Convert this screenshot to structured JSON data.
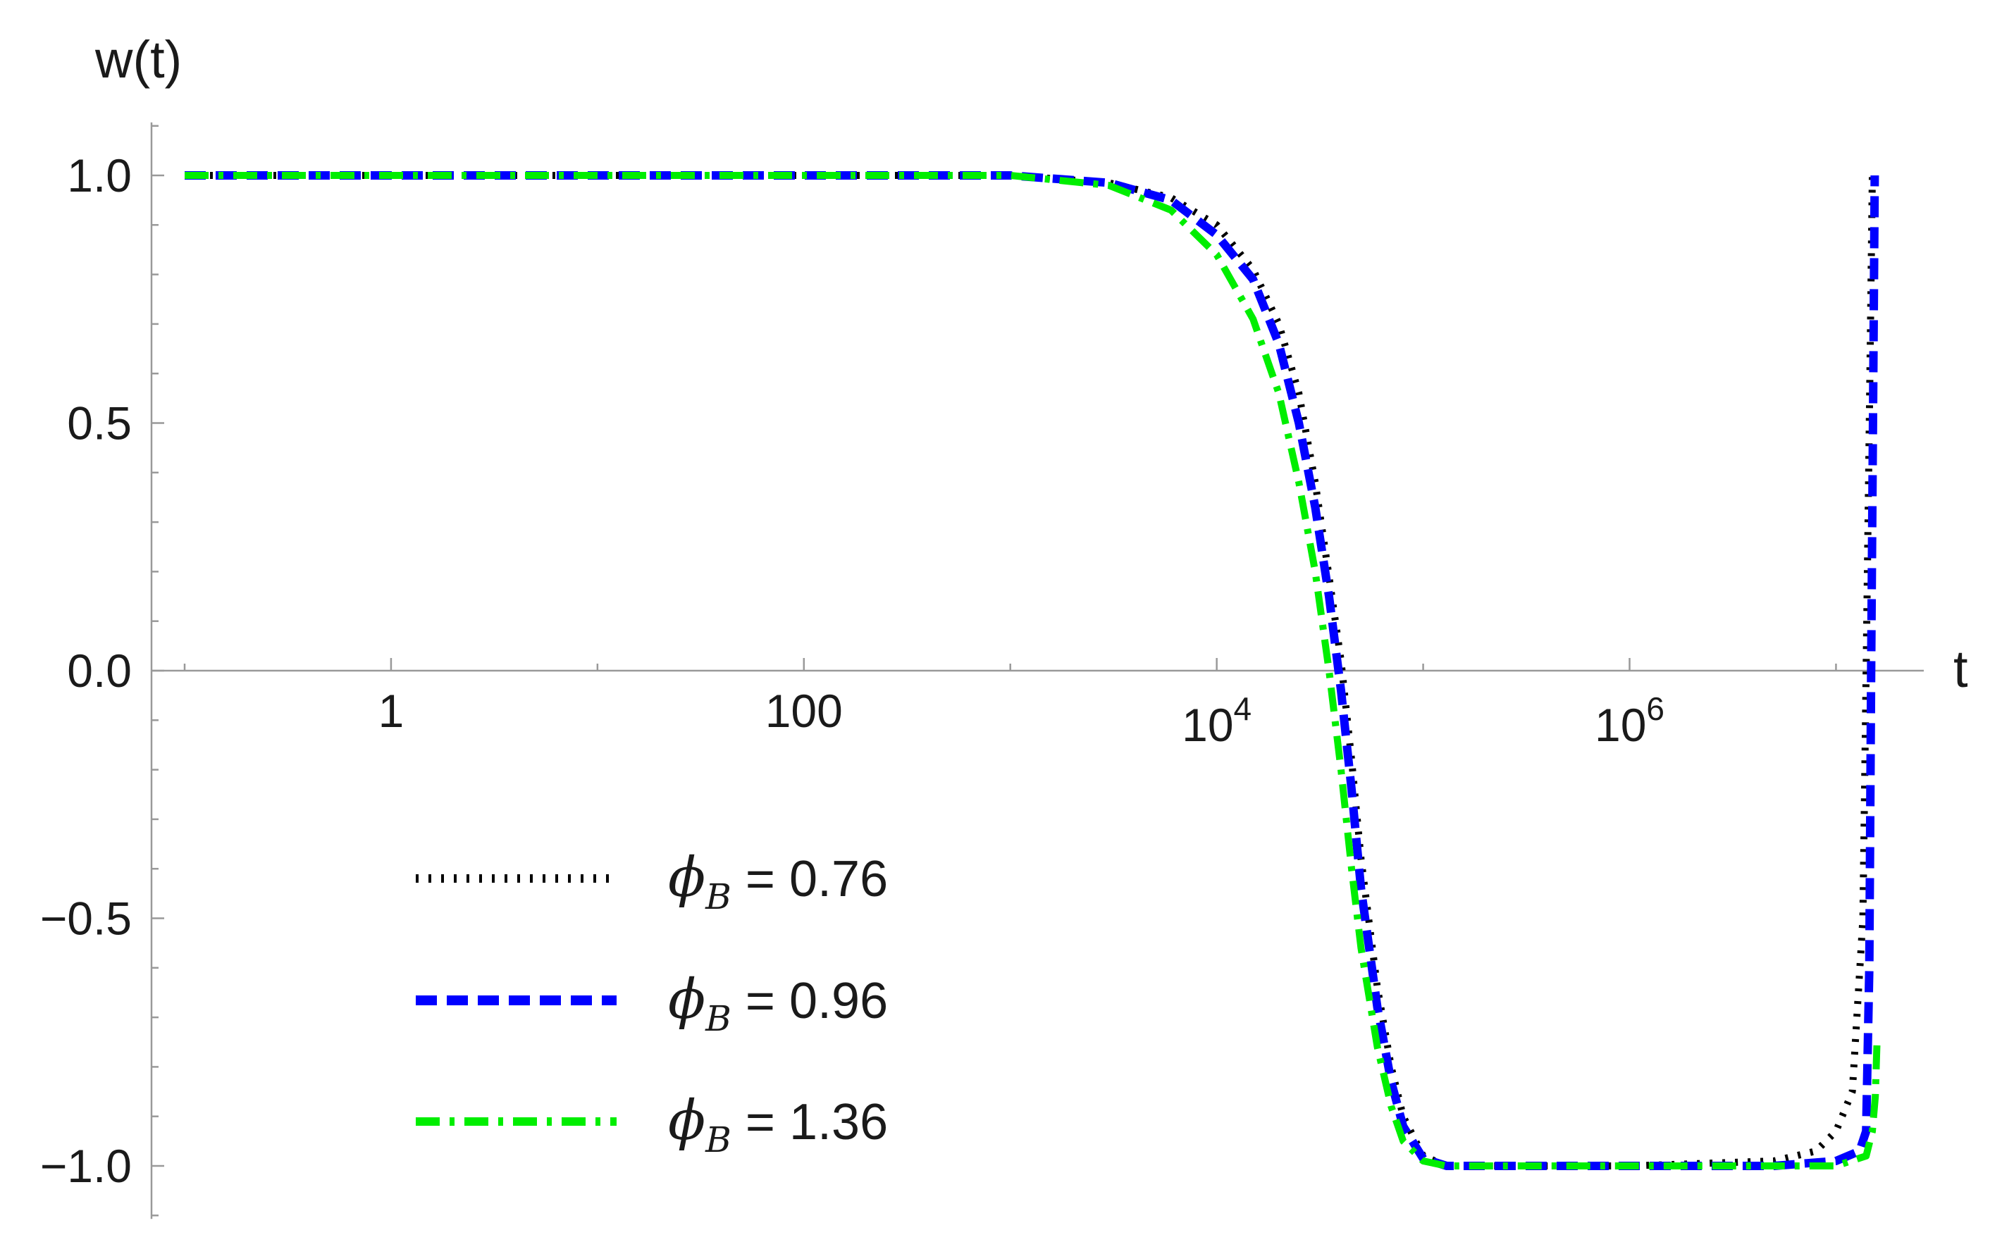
{
  "chart_data": {
    "type": "line",
    "xlabel": "t",
    "ylabel": "w(t)",
    "x_scale": "log10",
    "xlim": [
      0.1,
      25000000
    ],
    "ylim": [
      -1.1,
      1.1
    ],
    "x_ticks": [
      {
        "value": 1,
        "label": "1"
      },
      {
        "value": 100,
        "label": "100"
      },
      {
        "value": 10000,
        "label_base": "10",
        "label_exp": "4"
      },
      {
        "value": 1000000,
        "label_base": "10",
        "label_exp": "6"
      }
    ],
    "y_ticks": [
      {
        "value": 1.0,
        "label": "1.0"
      },
      {
        "value": 0.5,
        "label": "0.5"
      },
      {
        "value": 0.0,
        "label": "0.0"
      },
      {
        "value": -0.5,
        "label": "−0.5"
      },
      {
        "value": -1.0,
        "label": "−1.0"
      }
    ],
    "grid": false,
    "legend_position": "bottom-left",
    "series": [
      {
        "name_symbol": "ϕ",
        "name_sub": "B",
        "name_rest": " = 0.76",
        "color": "#000000",
        "dash": "dotted",
        "points": [
          [
            0.1,
            1.0
          ],
          [
            100,
            1.0
          ],
          [
            1000,
            1.0
          ],
          [
            3000,
            0.985
          ],
          [
            6000,
            0.955
          ],
          [
            10000,
            0.9
          ],
          [
            15000,
            0.81
          ],
          [
            20000,
            0.7
          ],
          [
            25000,
            0.56
          ],
          [
            30000,
            0.38
          ],
          [
            35000,
            0.19
          ],
          [
            40000,
            0.02
          ],
          [
            45000,
            -0.18
          ],
          [
            50000,
            -0.38
          ],
          [
            60000,
            -0.64
          ],
          [
            70000,
            -0.8
          ],
          [
            80000,
            -0.9
          ],
          [
            100000,
            -0.98
          ],
          [
            130000,
            -1.0
          ],
          [
            1000000,
            -1.0
          ],
          [
            5000000,
            -0.99
          ],
          [
            8000000,
            -0.97
          ],
          [
            10000000,
            -0.93
          ],
          [
            12000000,
            -0.85
          ],
          [
            13500000,
            -0.5
          ],
          [
            14000000,
            0.0
          ],
          [
            14500000,
            0.5
          ],
          [
            15000000,
            1.0
          ]
        ]
      },
      {
        "name_symbol": "ϕ",
        "name_sub": "B",
        "name_rest": " = 0.96",
        "color": "#0000ff",
        "dash": "dashed",
        "points": [
          [
            0.1,
            1.0
          ],
          [
            100,
            1.0
          ],
          [
            1000,
            1.0
          ],
          [
            3000,
            0.985
          ],
          [
            6000,
            0.95
          ],
          [
            10000,
            0.88
          ],
          [
            15000,
            0.79
          ],
          [
            20000,
            0.66
          ],
          [
            25000,
            0.5
          ],
          [
            30000,
            0.33
          ],
          [
            35000,
            0.15
          ],
          [
            40000,
            -0.04
          ],
          [
            45000,
            -0.24
          ],
          [
            50000,
            -0.44
          ],
          [
            60000,
            -0.68
          ],
          [
            70000,
            -0.83
          ],
          [
            80000,
            -0.92
          ],
          [
            100000,
            -0.985
          ],
          [
            130000,
            -1.0
          ],
          [
            1000000,
            -1.0
          ],
          [
            5000000,
            -1.0
          ],
          [
            10000000,
            -0.99
          ],
          [
            13000000,
            -0.97
          ],
          [
            14000000,
            -0.93
          ],
          [
            14500000,
            -0.6
          ],
          [
            14800000,
            0.0
          ],
          [
            15100000,
            0.5
          ],
          [
            15400000,
            1.0
          ]
        ]
      },
      {
        "name_symbol": "ϕ",
        "name_sub": "B",
        "name_rest": " = 1.36",
        "color": "#00ee00",
        "dash": "dashdot",
        "points": [
          [
            0.1,
            1.0
          ],
          [
            100,
            1.0
          ],
          [
            1000,
            1.0
          ],
          [
            3000,
            0.98
          ],
          [
            6000,
            0.93
          ],
          [
            10000,
            0.84
          ],
          [
            15000,
            0.71
          ],
          [
            20000,
            0.56
          ],
          [
            25000,
            0.38
          ],
          [
            30000,
            0.2
          ],
          [
            35000,
            0.0
          ],
          [
            40000,
            -0.2
          ],
          [
            45000,
            -0.4
          ],
          [
            50000,
            -0.56
          ],
          [
            60000,
            -0.76
          ],
          [
            70000,
            -0.88
          ],
          [
            80000,
            -0.95
          ],
          [
            100000,
            -0.99
          ],
          [
            130000,
            -1.0
          ],
          [
            1000000,
            -1.0
          ],
          [
            5000000,
            -1.0
          ],
          [
            10000000,
            -1.0
          ],
          [
            14000000,
            -0.98
          ],
          [
            15000000,
            -0.93
          ],
          [
            15500000,
            -0.86
          ],
          [
            15800000,
            -0.75
          ]
        ]
      }
    ]
  }
}
